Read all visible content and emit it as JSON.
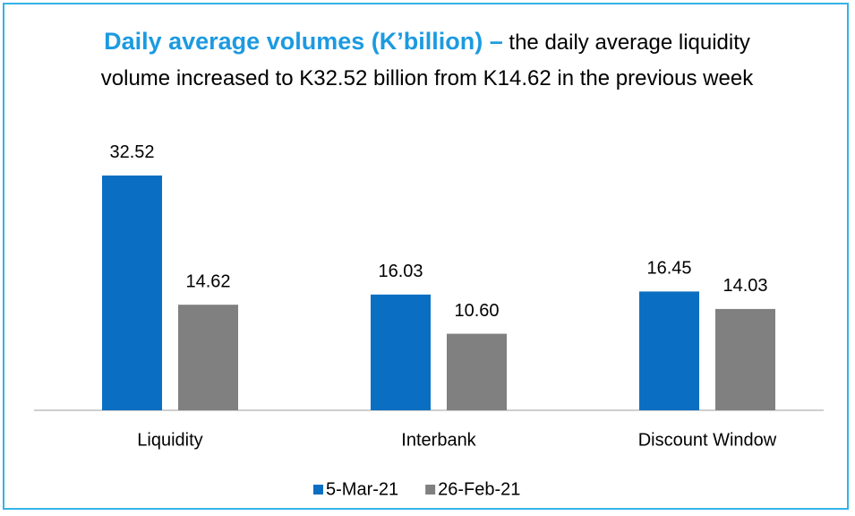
{
  "chart_data": {
    "type": "bar",
    "title": "Daily average volumes (K’billion) –",
    "subtitle": "the daily average liquidity volume increased to K32.52 billion from K14.62 in the previous week",
    "categories": [
      "Liquidity",
      "Interbank",
      "Discount Window"
    ],
    "series": [
      {
        "name": "5-Mar-21",
        "color": "#0a6fc2",
        "values": [
          32.52,
          16.03,
          16.45
        ],
        "value_labels": [
          "32.52",
          "16.03",
          "16.45"
        ]
      },
      {
        "name": "26-Feb-21",
        "color": "#808080",
        "values": [
          14.62,
          10.6,
          14.03
        ],
        "value_labels": [
          "14.62",
          "10.60",
          "14.03"
        ]
      }
    ],
    "legend": "bottom"
  }
}
